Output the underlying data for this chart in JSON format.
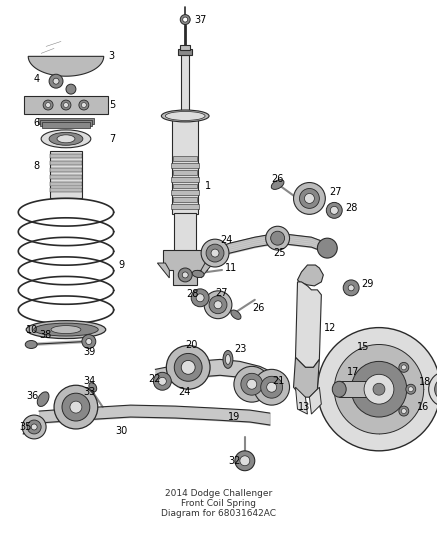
{
  "bg_color": "#ffffff",
  "title": "2014 Dodge Challenger\nFront Coil Spring\nDiagram for 68031642AC",
  "title_fontsize": 6.5,
  "label_fontsize": 7.0,
  "line_color": "#2a2a2a",
  "gray_dark": "#555555",
  "gray_mid": "#888888",
  "gray_light": "#bbbbbb",
  "gray_lighter": "#dddddd",
  "figsize": [
    4.38,
    5.33
  ],
  "dpi": 100
}
